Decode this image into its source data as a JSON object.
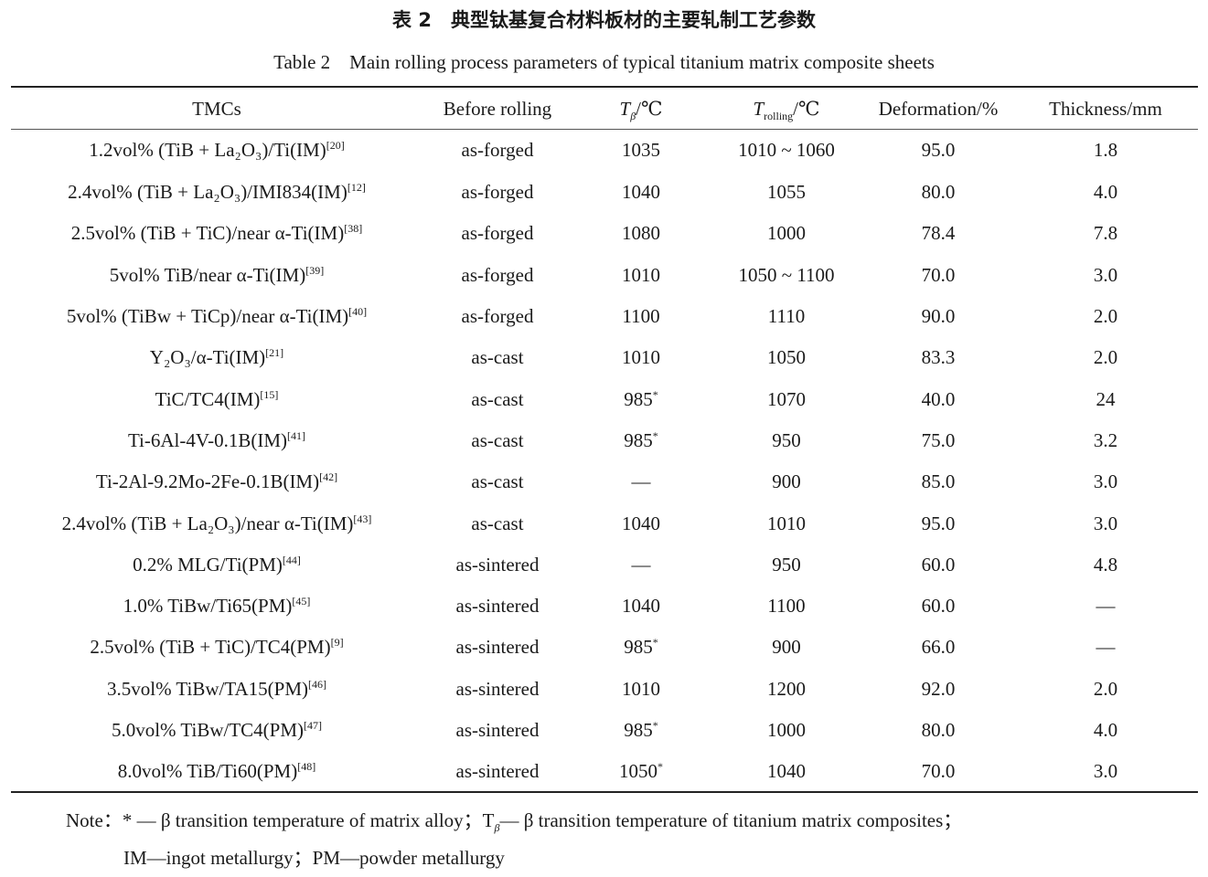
{
  "caption": {
    "cn": "表 2　典型钛基复合材料板材的主要轧制工艺参数",
    "en": "Table 2　Main rolling process parameters of typical titanium matrix composite sheets"
  },
  "headers": {
    "tmc": "TMCs",
    "before": "Before rolling",
    "tbeta_sym": "T",
    "tbeta_sub": "β",
    "tbeta_unit": "/℃",
    "troll_sym": "T",
    "troll_sub": "rolling",
    "troll_unit": "/℃",
    "deformation": "Deformation/%",
    "thickness": "Thickness/mm"
  },
  "rows": [
    {
      "tmc": "1.2vol% (TiB + La₂O₃)/Ti(IM)",
      "ref": "[20]",
      "before": "as-forged",
      "tbeta": "1035",
      "star": "",
      "troll": "1010 ~ 1060",
      "def": "95.0",
      "thick": "1.8"
    },
    {
      "tmc": "2.4vol% (TiB + La₂O₃)/IMI834(IM)",
      "ref": "[12]",
      "before": "as-forged",
      "tbeta": "1040",
      "star": "",
      "troll": "1055",
      "def": "80.0",
      "thick": "4.0"
    },
    {
      "tmc": "2.5vol% (TiB + TiC)/near α-Ti(IM)",
      "ref": "[38]",
      "before": "as-forged",
      "tbeta": "1080",
      "star": "",
      "troll": "1000",
      "def": "78.4",
      "thick": "7.8"
    },
    {
      "tmc": "5vol% TiB/near α-Ti(IM)",
      "ref": "[39]",
      "before": "as-forged",
      "tbeta": "1010",
      "star": "",
      "troll": "1050 ~ 1100",
      "def": "70.0",
      "thick": "3.0"
    },
    {
      "tmc": "5vol% (TiBw + TiCp)/near α-Ti(IM)",
      "ref": "[40]",
      "before": "as-forged",
      "tbeta": "1100",
      "star": "",
      "troll": "1110",
      "def": "90.0",
      "thick": "2.0"
    },
    {
      "tmc": "Y₂O₃/α-Ti(IM)",
      "ref": "[21]",
      "before": "as-cast",
      "tbeta": "1010",
      "star": "",
      "troll": "1050",
      "def": "83.3",
      "thick": "2.0"
    },
    {
      "tmc": "TiC/TC4(IM)",
      "ref": "[15]",
      "before": "as-cast",
      "tbeta": "985",
      "star": "*",
      "troll": "1070",
      "def": "40.0",
      "thick": "24"
    },
    {
      "tmc": "Ti-6Al-4V-0.1B(IM)",
      "ref": "[41]",
      "before": "as-cast",
      "tbeta": "985",
      "star": "*",
      "troll": "950",
      "def": "75.0",
      "thick": "3.2"
    },
    {
      "tmc": "Ti-2Al-9.2Mo-2Fe-0.1B(IM)",
      "ref": "[42]",
      "before": "as-cast",
      "tbeta": "—",
      "star": "",
      "troll": "900",
      "def": "85.0",
      "thick": "3.0"
    },
    {
      "tmc": "2.4vol% (TiB + La₂O₃)/near α-Ti(IM)",
      "ref": "[43]",
      "before": "as-cast",
      "tbeta": "1040",
      "star": "",
      "troll": "1010",
      "def": "95.0",
      "thick": "3.0"
    },
    {
      "tmc": "0.2% MLG/Ti(PM)",
      "ref": "[44]",
      "before": "as-sintered",
      "tbeta": "—",
      "star": "",
      "troll": "950",
      "def": "60.0",
      "thick": "4.8"
    },
    {
      "tmc": "1.0% TiBw/Ti65(PM)",
      "ref": "[45]",
      "before": "as-sintered",
      "tbeta": "1040",
      "star": "",
      "troll": "1100",
      "def": "60.0",
      "thick": "—"
    },
    {
      "tmc": "2.5vol% (TiB + TiC)/TC4(PM)",
      "ref": "[9]",
      "before": "as-sintered",
      "tbeta": "985",
      "star": "*",
      "troll": "900",
      "def": "66.0",
      "thick": "—"
    },
    {
      "tmc": "3.5vol% TiBw/TA15(PM)",
      "ref": "[46]",
      "before": "as-sintered",
      "tbeta": "1010",
      "star": "",
      "troll": "1200",
      "def": "92.0",
      "thick": "2.0"
    },
    {
      "tmc": "5.0vol% TiBw/TC4(PM)",
      "ref": "[47]",
      "before": "as-sintered",
      "tbeta": "985",
      "star": "*",
      "troll": "1000",
      "def": "80.0",
      "thick": "4.0"
    },
    {
      "tmc": "8.0vol% TiB/Ti60(PM)",
      "ref": "[48]",
      "before": "as-sintered",
      "tbeta": "1050",
      "star": "*",
      "troll": "1040",
      "def": "70.0",
      "thick": "3.0"
    }
  ],
  "note": {
    "line1": "Note：* — β transition temperature of matrix alloy；T",
    "line1_sub": "β",
    "line1_rest": "— β transition temperature of titanium matrix composites；",
    "line2": "IM—ingot metallurgy；PM—powder metallurgy"
  }
}
